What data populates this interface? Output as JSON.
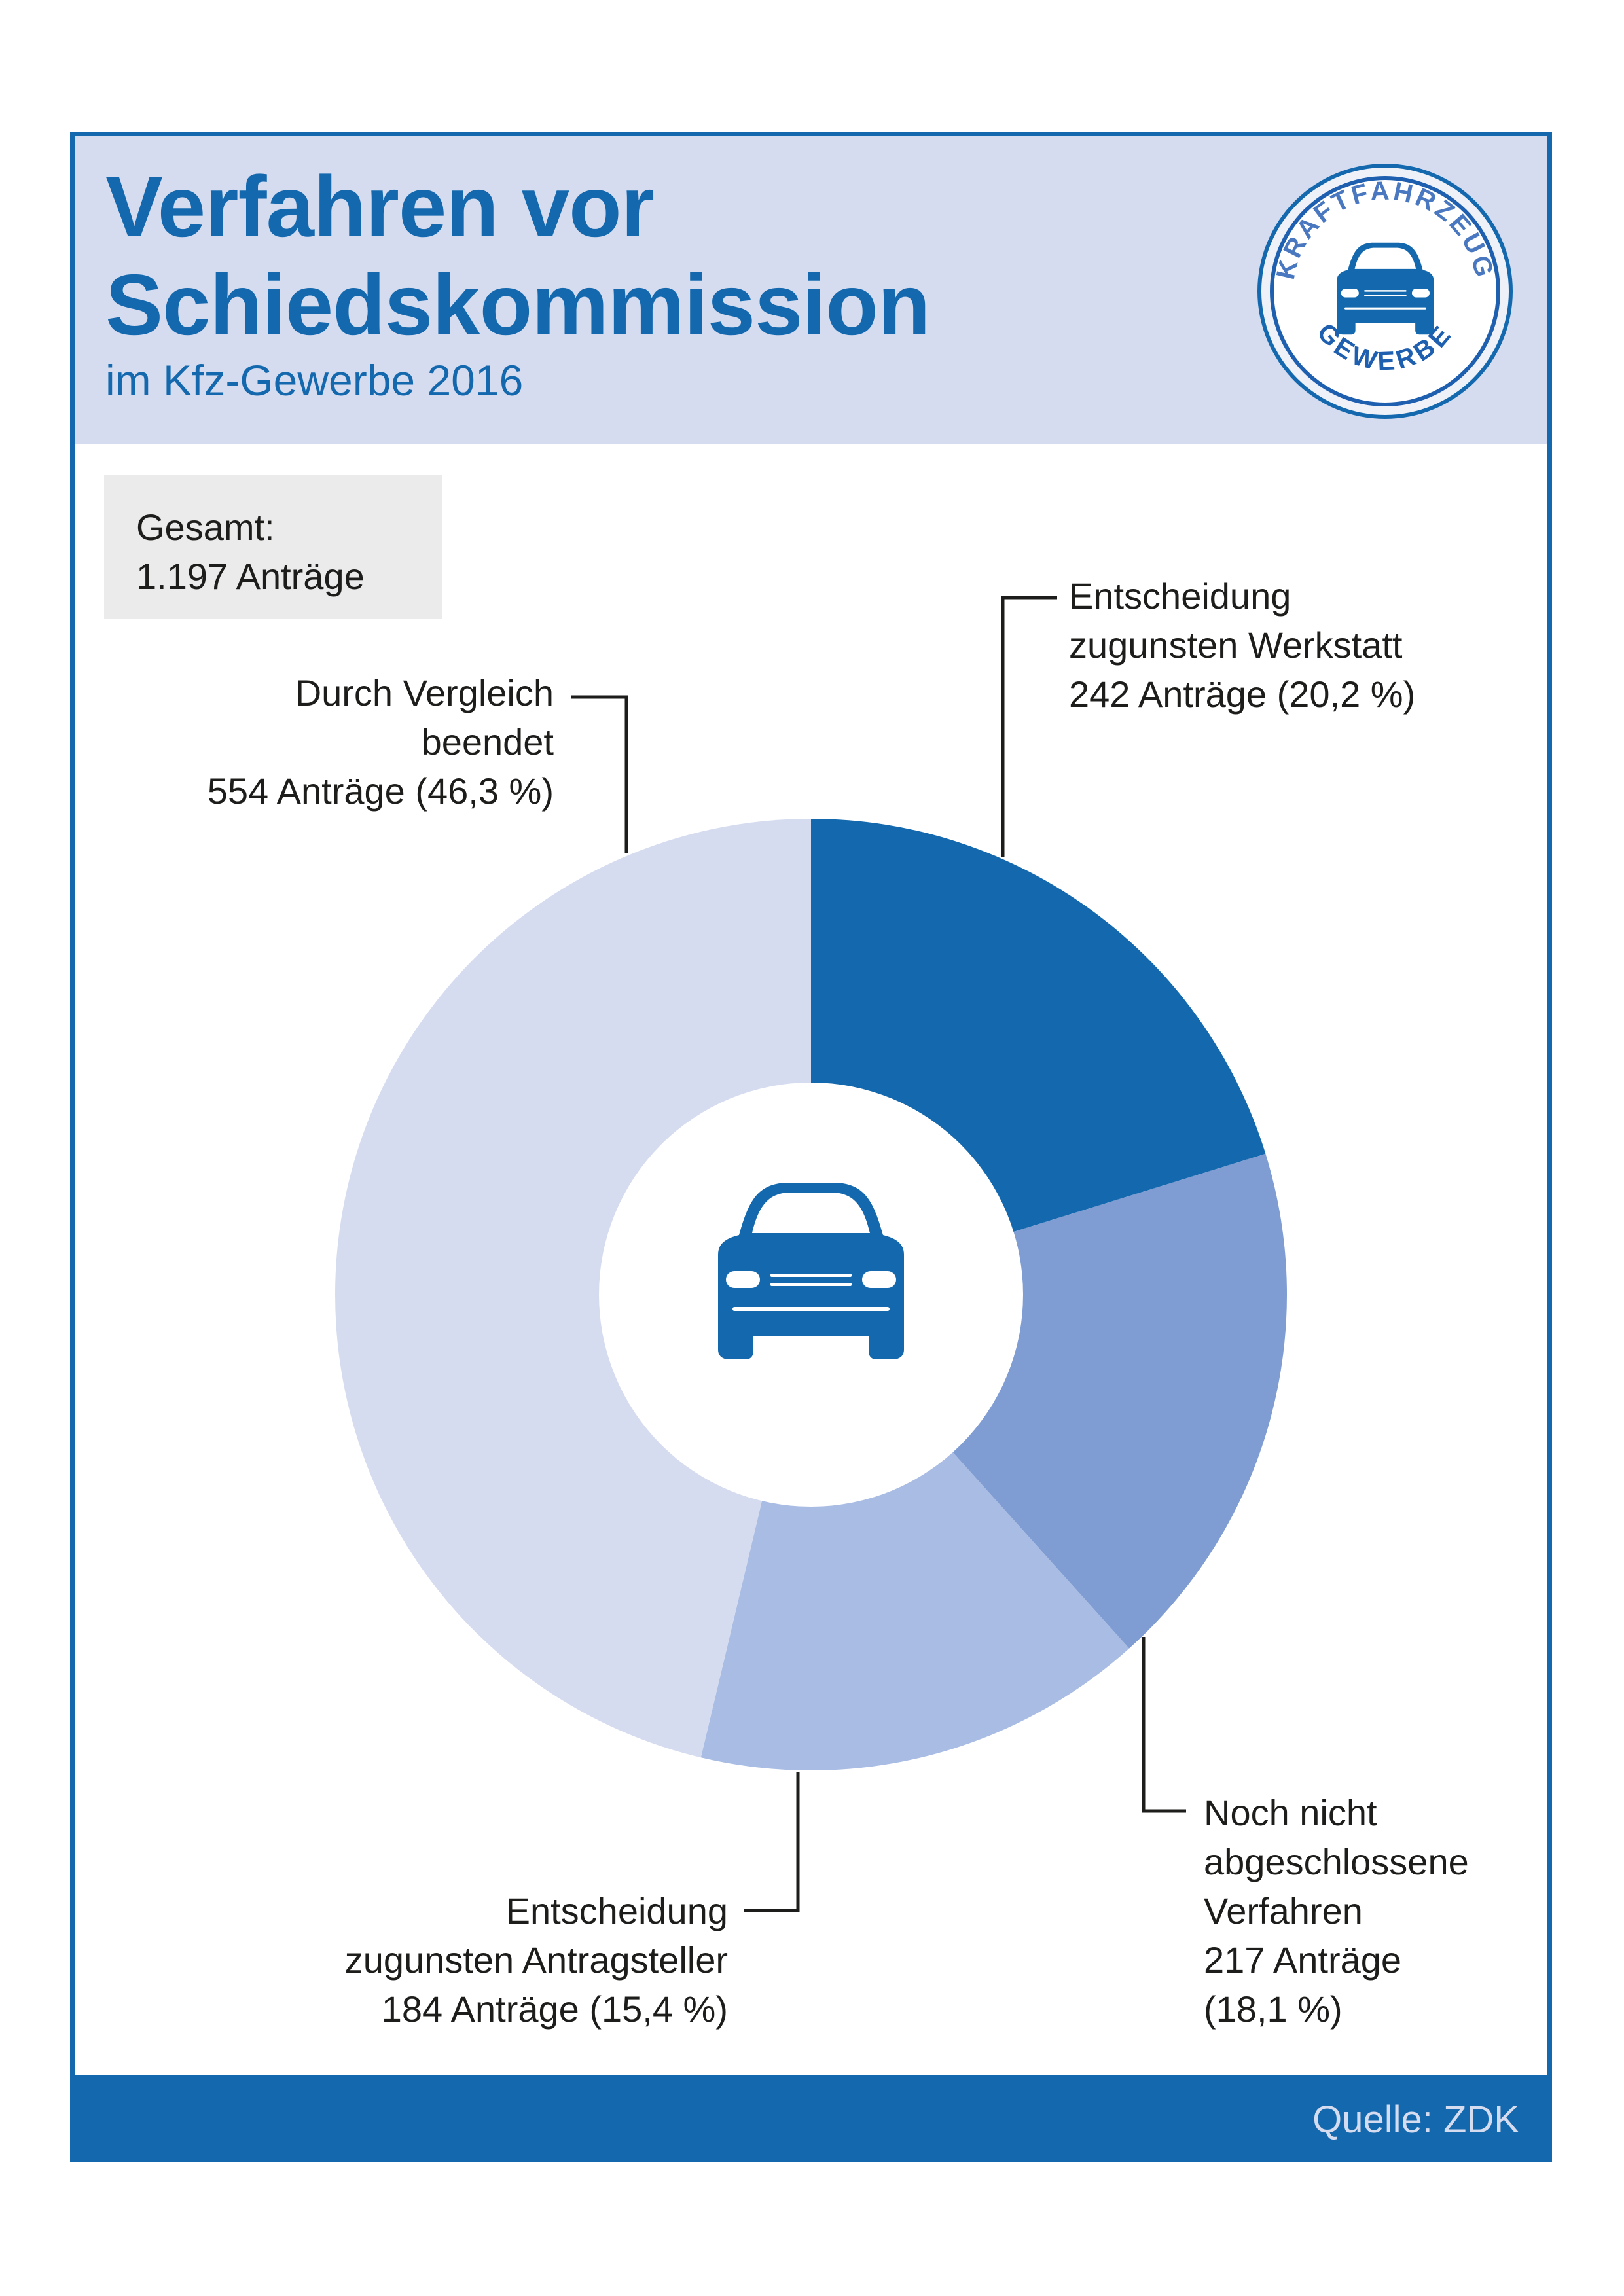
{
  "header": {
    "title_line1": "Verfahren vor",
    "title_line2": "Schiedskommission",
    "subtitle": "im Kfz-Gewerbe 2016",
    "logo_text_top": "KRAFTFAHRZEUG",
    "logo_text_bottom": "GEWERBE"
  },
  "total": {
    "label": "Gesamt:",
    "value": "1.197 Anträge"
  },
  "footer": {
    "source": "Quelle: ZDK"
  },
  "colors": {
    "brand": "#1469ae",
    "light": "#d6dcf0"
  },
  "chart_data": {
    "type": "pie",
    "variant": "donut",
    "title": "Verfahren vor Schiedskommission im Kfz-Gewerbe 2016",
    "total": 1197,
    "center_icon": "car-icon",
    "slices": [
      {
        "name": "Entscheidung zugunsten Werkstatt",
        "value": 242,
        "percent": 20.2,
        "color": "#1469ae",
        "label_lines": [
          "Entscheidung",
          "zugunsten Werkstatt",
          "242 Anträge (20,2 %)"
        ]
      },
      {
        "name": "Noch nicht abgeschlossene Verfahren",
        "value": 217,
        "percent": 18.1,
        "color": "#7f9dd2",
        "label_lines": [
          "Noch nicht",
          "abgeschlossene",
          "Verfahren",
          "217 Anträge",
          "(18,1 %)"
        ]
      },
      {
        "name": "Entscheidung zugunsten Antragsteller",
        "value": 184,
        "percent": 15.4,
        "color": "#a9bce3",
        "label_lines": [
          "Entscheidung",
          "zugunsten Antragsteller",
          "184 Anträge (15,4 %)"
        ]
      },
      {
        "name": "Durch Vergleich beendet",
        "value": 554,
        "percent": 46.3,
        "color": "#d6dcf0",
        "label_lines": [
          "Durch Vergleich",
          "beendet",
          "554 Anträge (46,3 %)"
        ]
      }
    ]
  }
}
